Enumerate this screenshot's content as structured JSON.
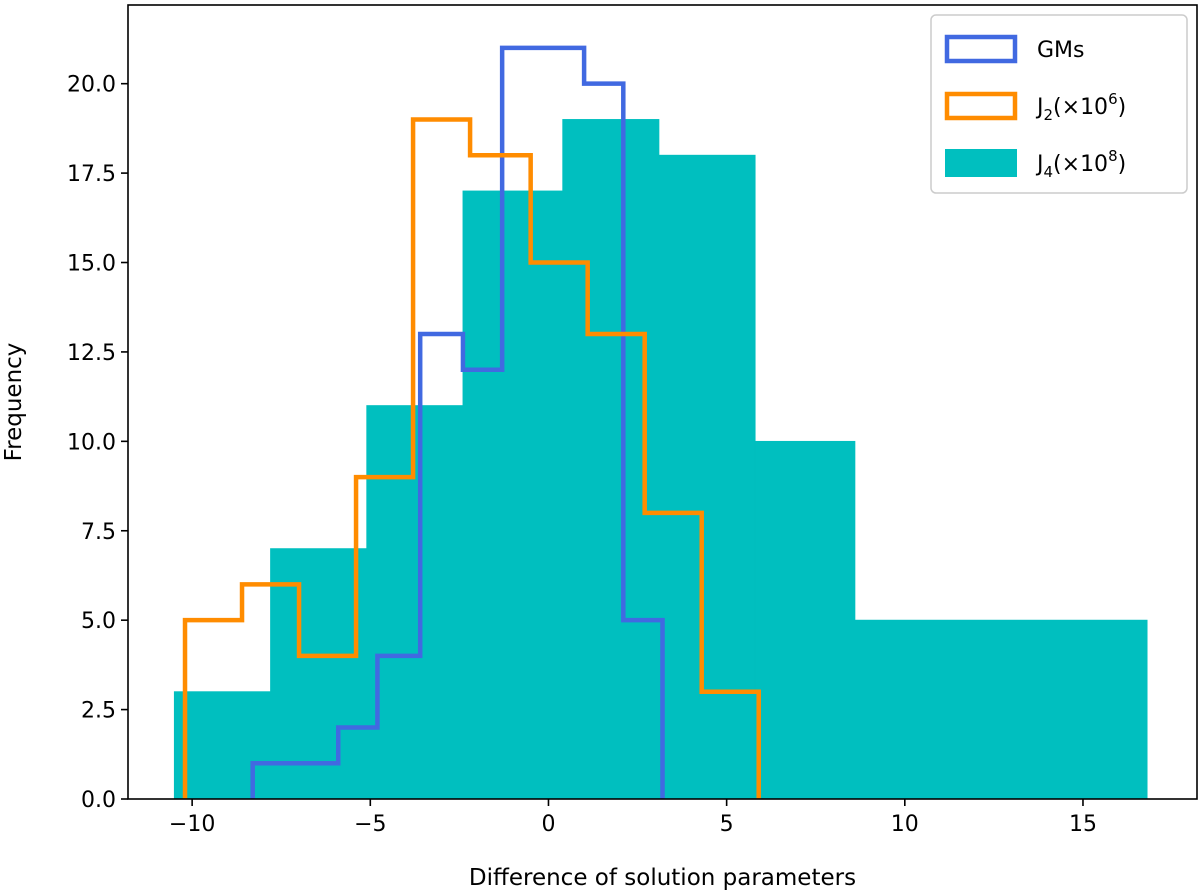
{
  "chart_data": {
    "type": "histogram",
    "title": "",
    "xlabel": "Difference of solution parameters",
    "ylabel": "Frequency",
    "xlim": [
      -11.8,
      18.2
    ],
    "ylim": [
      0,
      22.2
    ],
    "x_ticks": [
      {
        "value": -10,
        "label": "−10"
      },
      {
        "value": -5,
        "label": "−5"
      },
      {
        "value": 0,
        "label": "0"
      },
      {
        "value": 5,
        "label": "5"
      },
      {
        "value": 10,
        "label": "10"
      },
      {
        "value": 15,
        "label": "15"
      }
    ],
    "y_ticks": [
      {
        "value": 0,
        "label": "0.0"
      },
      {
        "value": 2.5,
        "label": "2.5"
      },
      {
        "value": 5,
        "label": "5.0"
      },
      {
        "value": 7.5,
        "label": "7.5"
      },
      {
        "value": 10,
        "label": "10.0"
      },
      {
        "value": 12.5,
        "label": "12.5"
      },
      {
        "value": 15,
        "label": "15.0"
      },
      {
        "value": 17.5,
        "label": "17.5"
      },
      {
        "value": 20,
        "label": "20.0"
      }
    ],
    "series": [
      {
        "name": "J4",
        "legend_main": "J",
        "legend_sub": "4",
        "legend_rest": "(×10",
        "legend_sup": "8",
        "legend_close": ")",
        "style": "filled",
        "color": "#00bfbf",
        "bin_edges": [
          -10.5,
          -7.8,
          -5.1,
          -2.4,
          0.4,
          3.1,
          5.8,
          8.6,
          16.8
        ],
        "counts": [
          3,
          7,
          11,
          17,
          19,
          18,
          10,
          5
        ]
      },
      {
        "name": "J2",
        "legend_main": "J",
        "legend_sub": "2",
        "legend_rest": "(×10",
        "legend_sup": "6",
        "legend_close": ")",
        "style": "step",
        "color": "#ff8c00",
        "bin_edges": [
          -10.2,
          -8.6,
          -7.0,
          -5.4,
          -3.8,
          -2.2,
          -0.5,
          1.1,
          2.7,
          4.3,
          5.9
        ],
        "counts": [
          5,
          6,
          4,
          9,
          19,
          18,
          15,
          13,
          8,
          3
        ]
      },
      {
        "name": "GMs",
        "legend_main": "GMs",
        "legend_sub": "",
        "legend_rest": "",
        "legend_sup": "",
        "legend_close": "",
        "style": "step",
        "color": "#4169e1",
        "bin_edges": [
          -8.3,
          -7.1,
          -5.9,
          -4.8,
          -3.6,
          -2.4,
          -1.3,
          -0.1,
          1.0,
          2.1,
          3.2
        ],
        "counts": [
          1,
          1,
          2,
          4,
          13,
          12,
          21,
          21,
          20,
          5
        ]
      }
    ],
    "legend_order": [
      "GMs",
      "J2",
      "J4"
    ],
    "legend_position": "top-right"
  }
}
